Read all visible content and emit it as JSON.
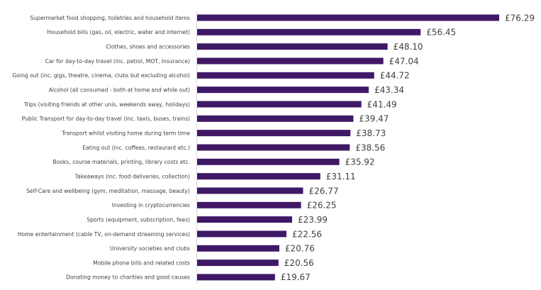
{
  "chart_data": {
    "type": "bar",
    "orientation": "horizontal",
    "title": "",
    "xlabel": "",
    "ylabel": "",
    "xlim": [
      0,
      76.29
    ],
    "grid": false,
    "bar_color": "#3f1866",
    "axis_color": "#d9d9d9",
    "value_prefix": "£",
    "categories": [
      "Supermarket food shopping, toiletries and household items",
      "Household bills (gas, oil, electric, water and internet)",
      "Clothes, shoes and accessories",
      "Car for day-to-day travel (inc. petrol, MOT, Insurance)",
      "Going out (inc. gigs, theatre, cinema, clubs but excluding alcohol)",
      "Alcohol (all consumed - both at home and while out)",
      "Trips (visiting friends at other unis, weekends away, holidays)",
      "Public Transport for day-to-day travel (inc. taxis, buses, trains)",
      "Transport whilst visiting home during term time",
      "Eating out (inc. coffees, restaurant etc.)",
      "Books, course materials, printing, library costs etc.",
      "Takeaways (inc. food deliveries, collection)",
      "Self-Care and wellbeing (gym, meditation, massage, beauty)",
      "Investing in cryptocurrencies",
      "Sports (equipment, subscription, fees)",
      "Home entertainment (cable TV, on-demand streaming services)",
      "University societies and clubs",
      "Mobile phone bills and related costs",
      "Donating money to charities and good causes"
    ],
    "values": [
      76.29,
      56.45,
      48.1,
      47.04,
      44.72,
      43.34,
      41.49,
      39.47,
      38.73,
      38.56,
      35.92,
      31.11,
      26.77,
      26.25,
      23.99,
      22.56,
      20.76,
      20.56,
      19.67
    ],
    "value_labels": [
      "£76.29",
      "£56.45",
      "£48.10",
      "£47.04",
      "£44.72",
      "£43.34",
      "£41.49",
      "£39.47",
      "£38.73",
      "£38.56",
      "£35.92",
      "£31.11",
      "£26.77",
      "£26.25",
      "£23.99",
      "£22.56",
      "£20.76",
      "£20.56",
      "£19.67"
    ]
  }
}
